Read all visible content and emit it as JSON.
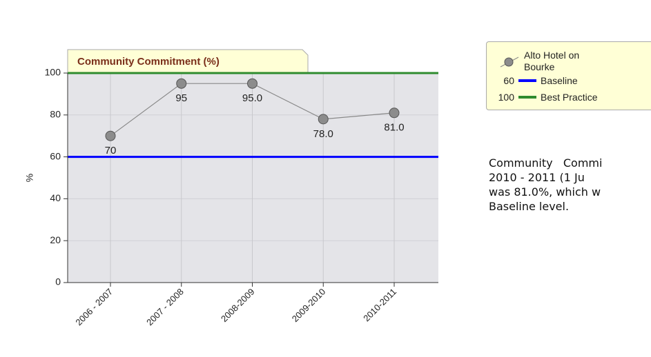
{
  "chart_data": {
    "type": "line",
    "title": "Community Commitment (%)",
    "y_label": "%",
    "categories": [
      "2006 - 2007",
      "2007 - 2008",
      "2008-2009",
      "2009-2010",
      "2010-2011"
    ],
    "series": [
      {
        "name": "Alto Hotel on Bourke",
        "color": "#888888",
        "marker_color": "#8c8c8c",
        "values": [
          70,
          95,
          95,
          78,
          81
        ],
        "value_labels": [
          "70",
          "95",
          "95.0",
          "78.0",
          "81.0"
        ]
      }
    ],
    "reference_lines": [
      {
        "name": "Baseline",
        "value": 60,
        "color": "#0000ff"
      },
      {
        "name": "Best Practice",
        "value": 100,
        "color": "#2e8b2e"
      }
    ],
    "ylim": [
      0,
      100
    ],
    "yticks": [
      0,
      20,
      40,
      60,
      80,
      100
    ],
    "grid": true,
    "note_lines": [
      "Community   Commi",
      "2010 - 2011 (1 Ju",
      "was 81.0%, which w",
      "Baseline level."
    ]
  }
}
